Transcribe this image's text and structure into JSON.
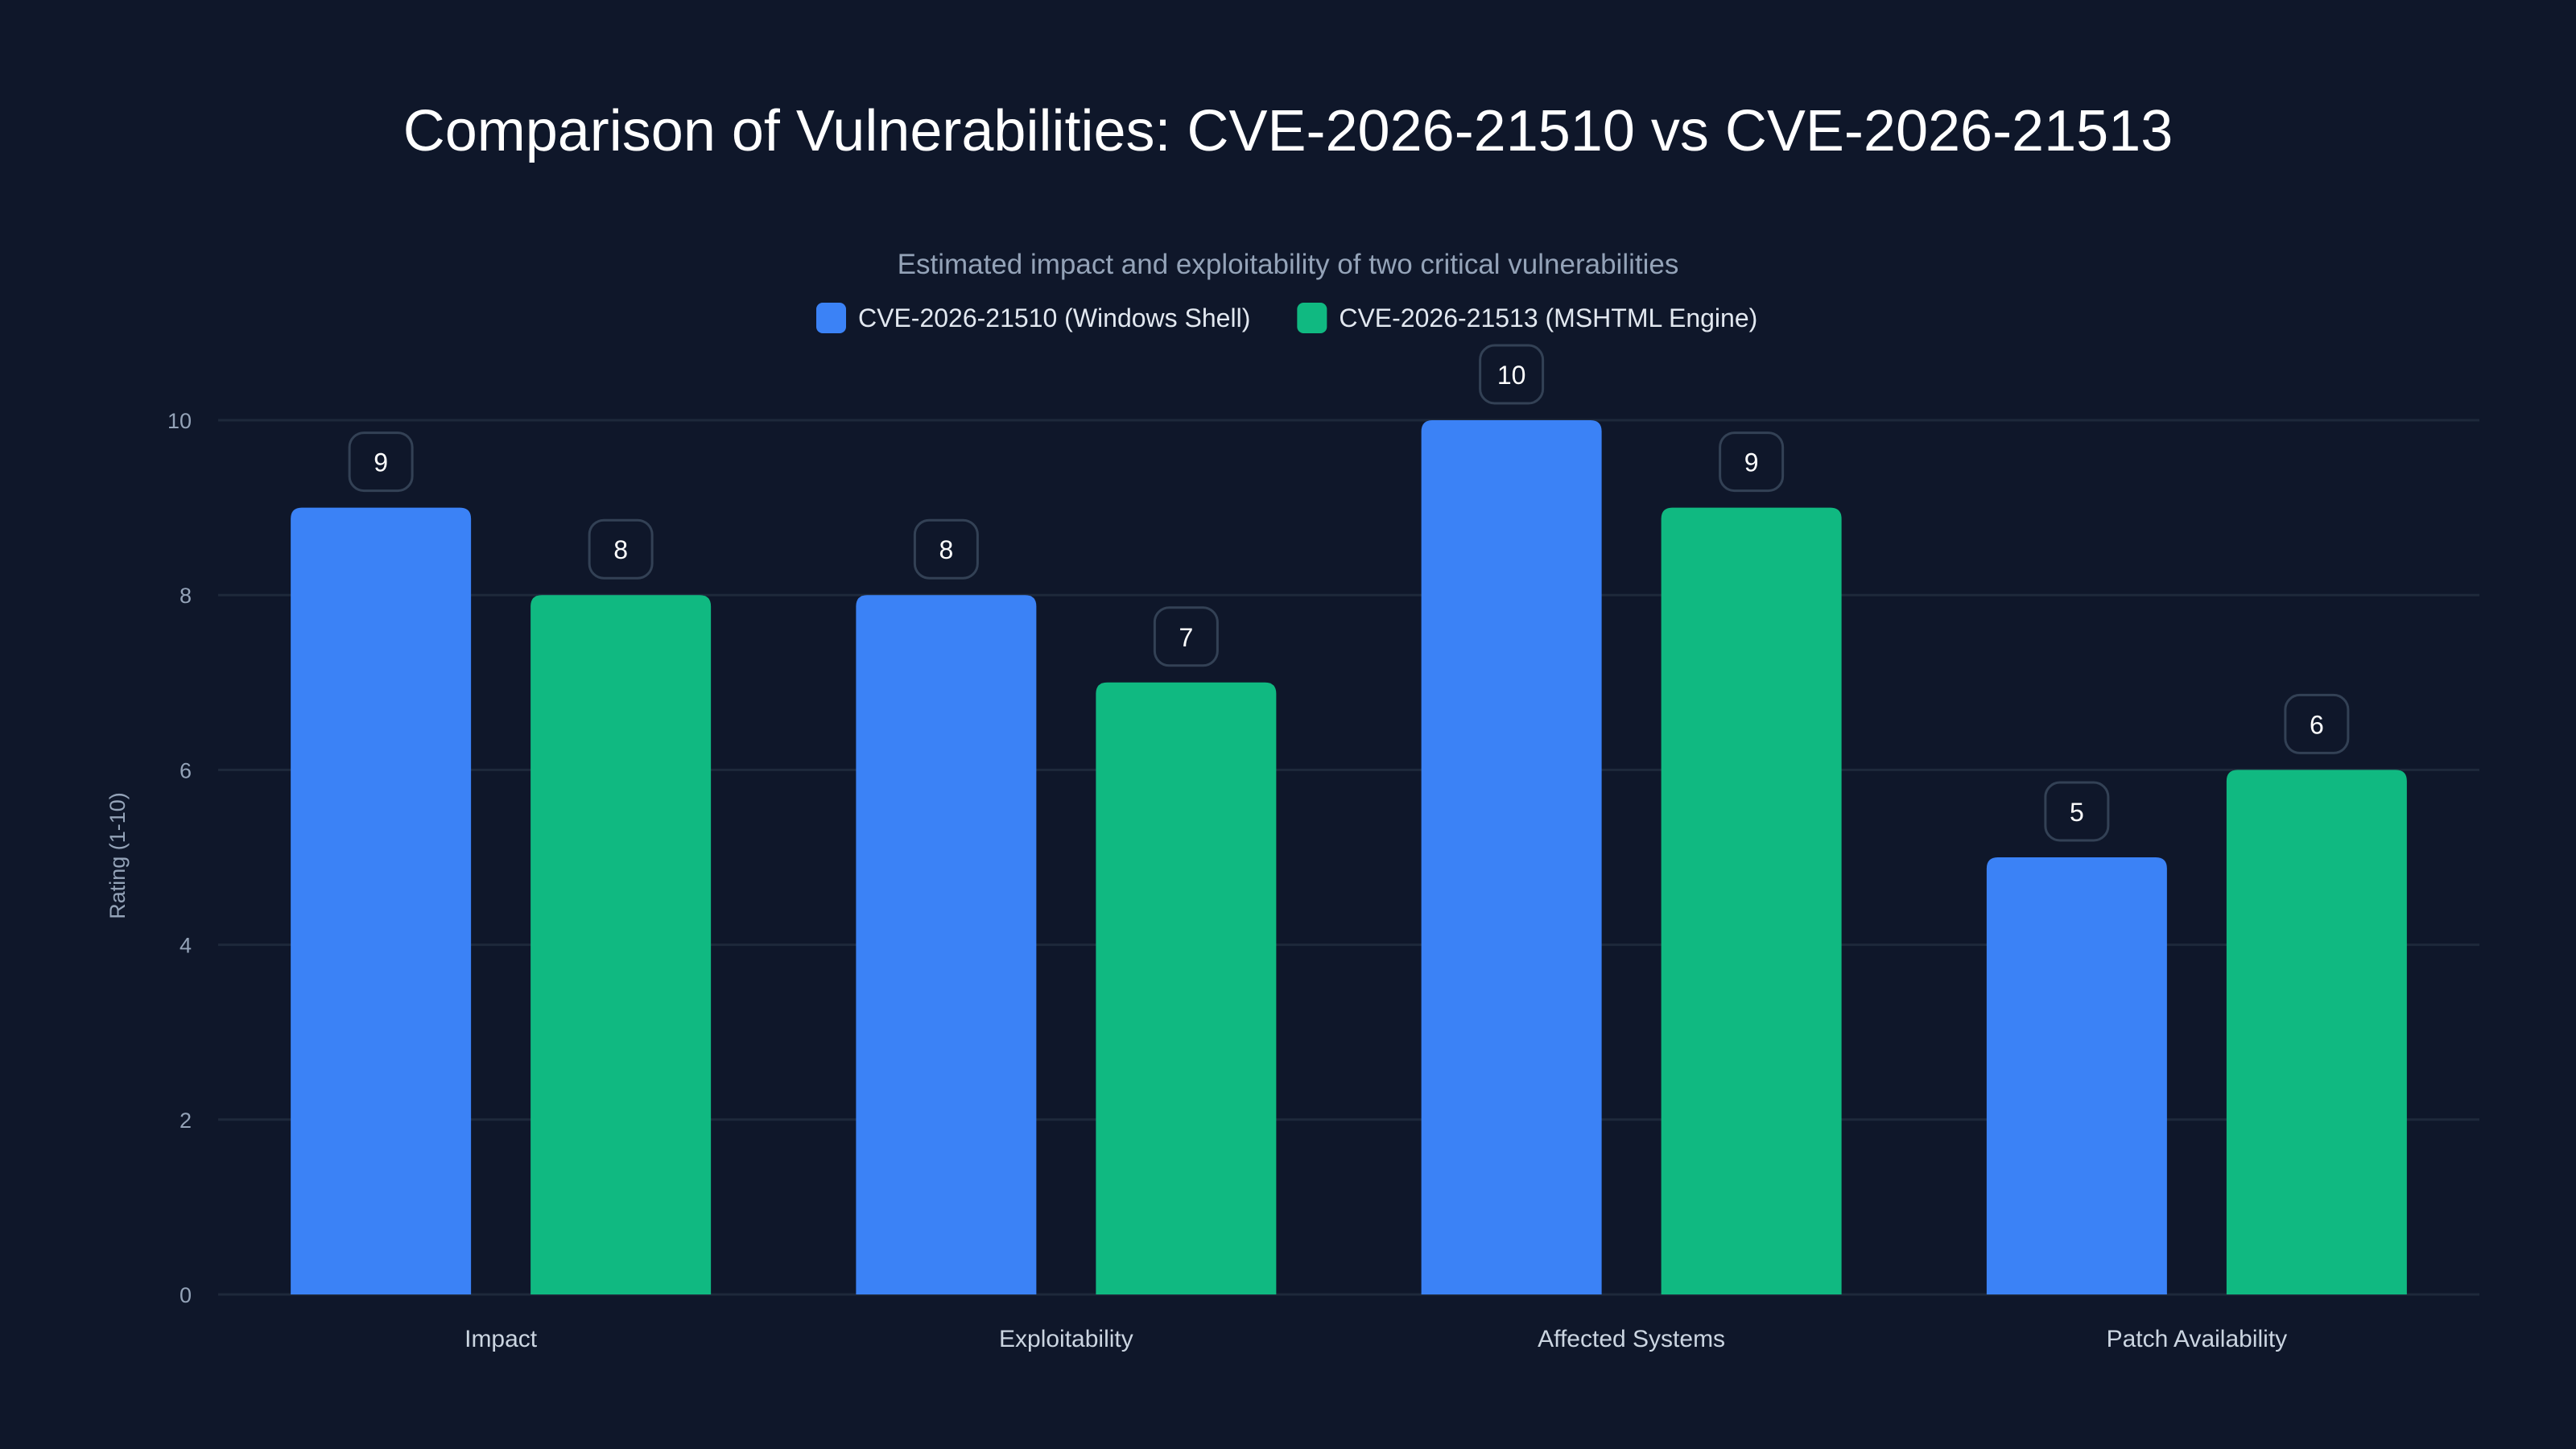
{
  "chart_data": {
    "type": "bar",
    "title": "Comparison of Vulnerabilities: CVE-2026-21510 vs CVE-2026-21513",
    "subtitle": "Estimated impact and exploitability of two critical vulnerabilities",
    "xlabel": "",
    "ylabel": "Rating (1-10)",
    "ylim": [
      0,
      10
    ],
    "yticks": [
      0,
      2,
      4,
      6,
      8,
      10
    ],
    "grid": true,
    "legend_position": "top-center",
    "categories": [
      "Impact",
      "Exploitability",
      "Affected Systems",
      "Patch Availability"
    ],
    "series": [
      {
        "name": "CVE-2026-21510 (Windows Shell)",
        "color": "#3b82f6",
        "values": [
          9,
          8,
          10,
          5
        ]
      },
      {
        "name": "CVE-2026-21513 (MSHTML Engine)",
        "color": "#10b981",
        "values": [
          8,
          7,
          9,
          6
        ]
      }
    ]
  }
}
